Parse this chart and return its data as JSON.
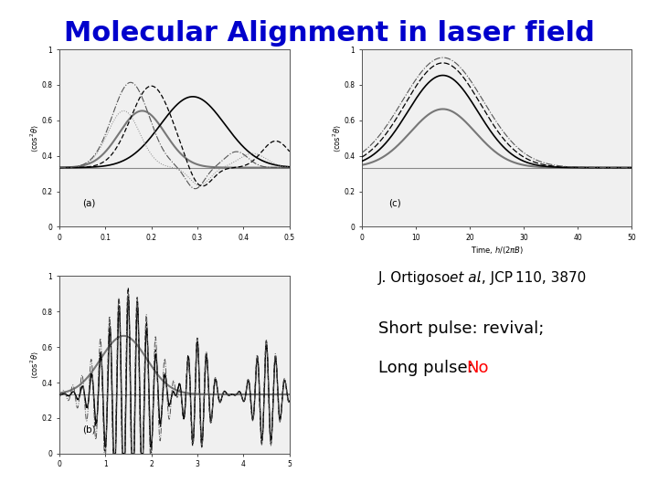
{
  "title": "Molecular Alignment in laser field",
  "title_color": "#0000CC",
  "title_fontsize": 22,
  "bg_color": "#FFFFFF",
  "no_color": "#FF0000",
  "text_fontsize": 13,
  "ref_fontsize": 11,
  "subplot_a_label": "(a)",
  "subplot_b_label": "(b)",
  "subplot_c_label": "(c)",
  "plot_bg_color": "#F0F0F0",
  "ref_line_color": "#888888",
  "top_line_color": "#AAAAAA"
}
